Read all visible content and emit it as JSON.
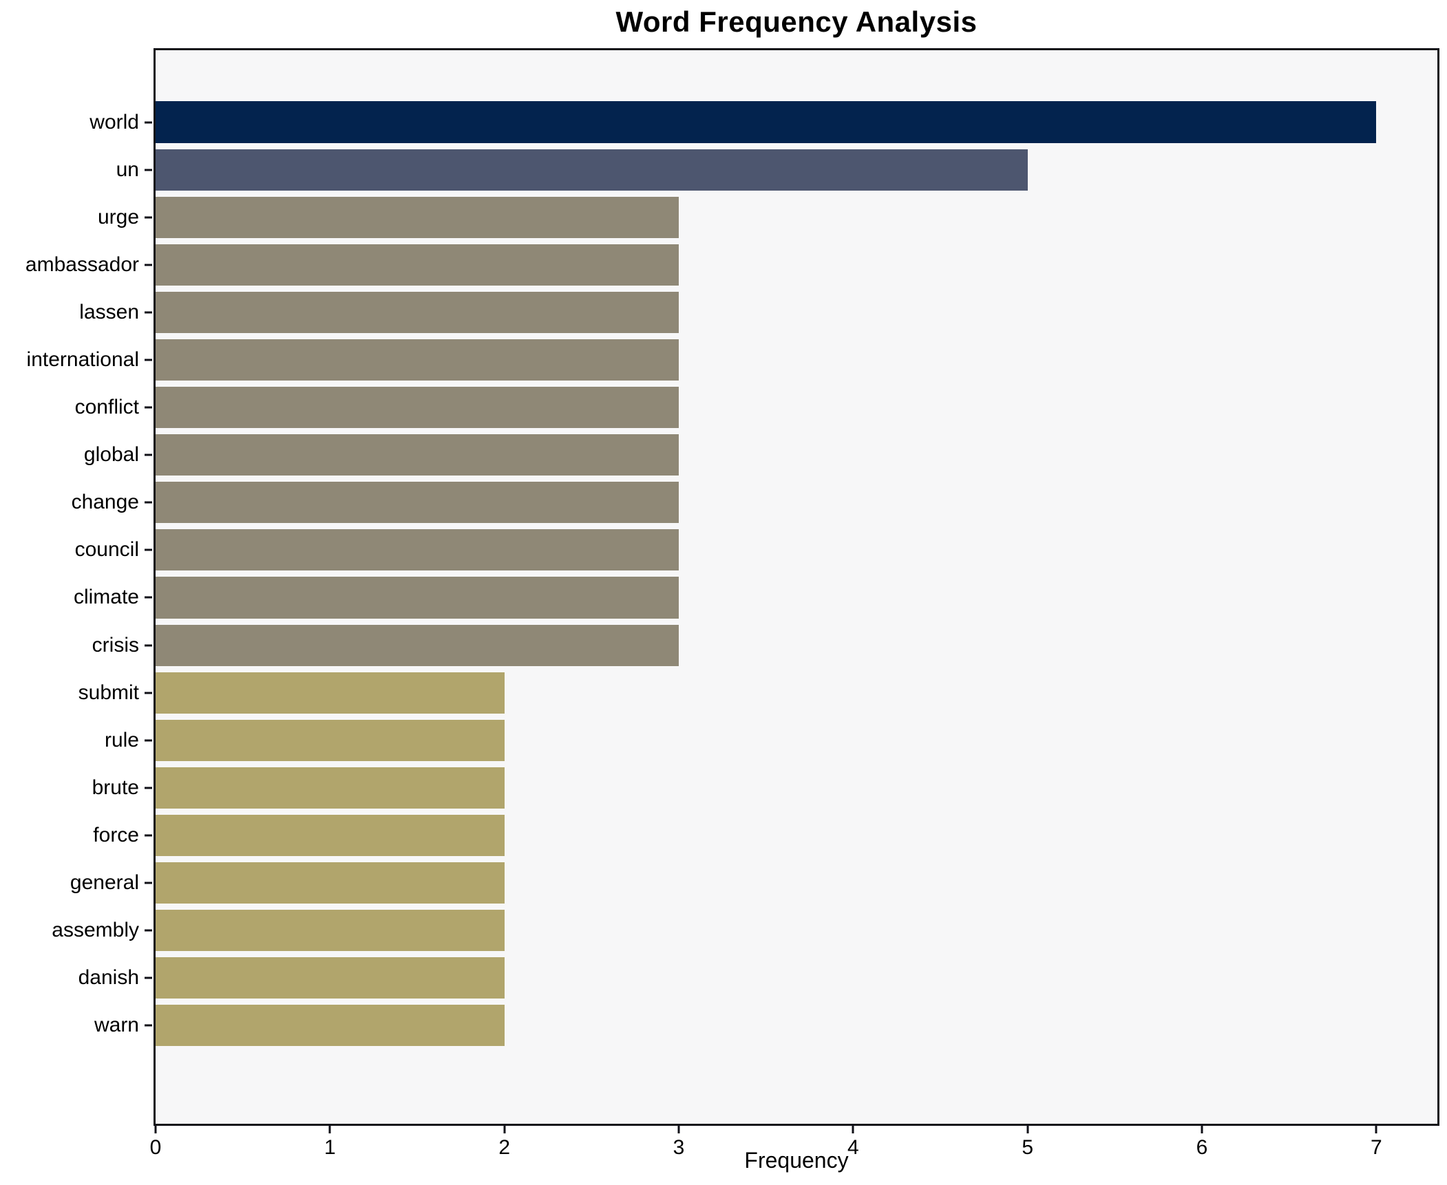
{
  "chart": {
    "title": "Word Frequency Analysis",
    "xlabel": "Frequency"
  },
  "chart_data": {
    "type": "bar",
    "orientation": "horizontal",
    "title": "Word Frequency Analysis",
    "xlabel": "Frequency",
    "ylabel": "",
    "categories": [
      "world",
      "un",
      "urge",
      "ambassador",
      "lassen",
      "international",
      "conflict",
      "global",
      "change",
      "council",
      "climate",
      "crisis",
      "submit",
      "rule",
      "brute",
      "force",
      "general",
      "assembly",
      "danish",
      "warn"
    ],
    "values": [
      7,
      5,
      3,
      3,
      3,
      3,
      3,
      3,
      3,
      3,
      3,
      3,
      2,
      2,
      2,
      2,
      2,
      2,
      2,
      2
    ],
    "xticks": [
      0,
      1,
      2,
      3,
      4,
      5,
      6,
      7
    ],
    "xlim": [
      0,
      7.35
    ],
    "grid": false,
    "legend_position": "none",
    "bar_colors": [
      "#03234e",
      "#4d566f",
      "#8f8876",
      "#8f8876",
      "#8f8876",
      "#8f8876",
      "#8f8876",
      "#8f8876",
      "#8f8876",
      "#8f8876",
      "#8f8876",
      "#8f8876",
      "#b1a56c",
      "#b1a56c",
      "#b1a56c",
      "#b1a56c",
      "#b1a56c",
      "#b1a56c",
      "#b1a56c",
      "#b1a56c"
    ],
    "colors": {
      "navy": "#03234e",
      "slate": "#4d566f",
      "taupe": "#8f8876",
      "khaki": "#b1a56c",
      "plot_background": "#f7f7f8",
      "figure_background": "#ffffff",
      "spine": "#111118",
      "text": "#000000"
    }
  }
}
